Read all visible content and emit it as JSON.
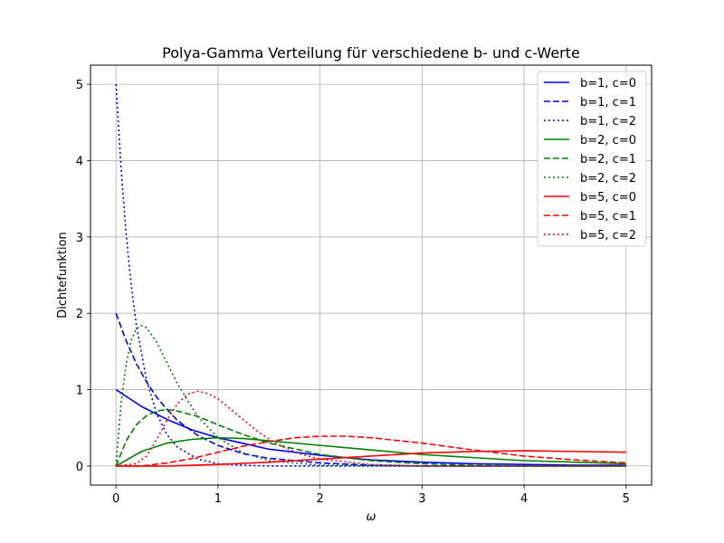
{
  "chart_data": {
    "type": "line",
    "title": "Polya-Gamma Verteilung für verschiedene b- und c-Werte",
    "xlabel": "ω",
    "ylabel": "Dichtefunktion",
    "xlim": [
      -0.25,
      5.25
    ],
    "ylim": [
      -0.25,
      5.25
    ],
    "xticks": [
      0,
      1,
      2,
      3,
      4,
      5
    ],
    "yticks": [
      0,
      1,
      2,
      3,
      4,
      5
    ],
    "grid": true,
    "legend_position": "top-right",
    "series": [
      {
        "name": "b=1, c=0",
        "color": "#0000ff",
        "dash": "solid",
        "x": [
          0,
          0.25,
          0.5,
          0.75,
          1,
          1.5,
          2,
          2.5,
          3,
          3.5,
          4,
          4.5,
          5
        ],
        "y": [
          1.0,
          0.78,
          0.61,
          0.47,
          0.37,
          0.22,
          0.14,
          0.08,
          0.05,
          0.03,
          0.02,
          0.01,
          0.01
        ]
      },
      {
        "name": "b=1, c=1",
        "color": "#0000ff",
        "dash": "dashed",
        "x": [
          0,
          0.1,
          0.2,
          0.3,
          0.4,
          0.5,
          0.6,
          0.8,
          1,
          1.25,
          1.5,
          2,
          2.5,
          3,
          4,
          5
        ],
        "y": [
          2.0,
          1.64,
          1.34,
          1.1,
          0.9,
          0.74,
          0.6,
          0.4,
          0.27,
          0.16,
          0.1,
          0.04,
          0.01,
          0.0,
          0.0,
          0.0
        ]
      },
      {
        "name": "b=1, c=2",
        "color": "#0000ff",
        "dash": "dotted",
        "x": [
          0,
          0.05,
          0.1,
          0.15,
          0.2,
          0.3,
          0.4,
          0.5,
          0.6,
          0.8,
          1,
          1.25,
          1.5,
          2,
          3,
          5
        ],
        "y": [
          5.0,
          3.89,
          3.03,
          2.36,
          1.84,
          1.12,
          0.68,
          0.41,
          0.25,
          0.09,
          0.03,
          0.01,
          0.0,
          0.0,
          0.0,
          0.0
        ]
      },
      {
        "name": "b=2, c=0",
        "color": "#008000",
        "dash": "solid",
        "x": [
          0,
          0.25,
          0.5,
          0.75,
          1,
          1.25,
          1.5,
          2,
          2.5,
          3,
          3.5,
          4,
          4.5,
          5
        ],
        "y": [
          0.0,
          0.19,
          0.3,
          0.35,
          0.37,
          0.36,
          0.33,
          0.27,
          0.21,
          0.15,
          0.11,
          0.07,
          0.05,
          0.03
        ]
      },
      {
        "name": "b=2, c=1",
        "color": "#008000",
        "dash": "dashed",
        "x": [
          0,
          0.1,
          0.2,
          0.3,
          0.4,
          0.5,
          0.6,
          0.8,
          1,
          1.25,
          1.5,
          2,
          2.5,
          3,
          3.5,
          4,
          5
        ],
        "y": [
          0.0,
          0.33,
          0.54,
          0.66,
          0.72,
          0.74,
          0.72,
          0.65,
          0.54,
          0.41,
          0.3,
          0.15,
          0.07,
          0.03,
          0.01,
          0.0,
          0.0
        ]
      },
      {
        "name": "b=2, c=2",
        "color": "#008000",
        "dash": "dotted",
        "x": [
          0,
          0.05,
          0.1,
          0.15,
          0.2,
          0.25,
          0.3,
          0.4,
          0.5,
          0.6,
          0.8,
          1,
          1.25,
          1.5,
          2,
          3,
          5
        ],
        "y": [
          0.0,
          0.82,
          1.34,
          1.65,
          1.8,
          1.84,
          1.81,
          1.62,
          1.35,
          1.08,
          0.65,
          0.37,
          0.17,
          0.07,
          0.01,
          0.0,
          0.0
        ]
      },
      {
        "name": "b=5, c=0",
        "color": "#ff0000",
        "dash": "solid",
        "x": [
          0,
          0.5,
          1,
          1.5,
          2,
          2.5,
          3,
          3.5,
          4,
          4.5,
          5
        ],
        "y": [
          0.0,
          0.0,
          0.02,
          0.05,
          0.09,
          0.13,
          0.17,
          0.19,
          0.2,
          0.19,
          0.18
        ]
      },
      {
        "name": "b=5, c=1",
        "color": "#ff0000",
        "dash": "dashed",
        "x": [
          0,
          0.25,
          0.5,
          0.75,
          1,
          1.25,
          1.5,
          1.75,
          2,
          2.25,
          2.5,
          3,
          3.5,
          4,
          4.5,
          5
        ],
        "y": [
          0.0,
          0.0,
          0.04,
          0.1,
          0.18,
          0.26,
          0.32,
          0.37,
          0.39,
          0.39,
          0.37,
          0.3,
          0.21,
          0.13,
          0.08,
          0.04
        ]
      },
      {
        "name": "b=5, c=2",
        "color": "#ff0000",
        "dash": "dotted",
        "x": [
          0,
          0.2,
          0.3,
          0.4,
          0.5,
          0.6,
          0.7,
          0.8,
          0.9,
          1,
          1.1,
          1.2,
          1.4,
          1.6,
          1.8,
          2,
          2.5,
          3,
          4,
          5
        ],
        "y": [
          0.0,
          0.03,
          0.13,
          0.35,
          0.6,
          0.81,
          0.94,
          0.98,
          0.95,
          0.88,
          0.77,
          0.66,
          0.44,
          0.27,
          0.16,
          0.09,
          0.02,
          0.0,
          0.0,
          0.0
        ]
      }
    ]
  }
}
